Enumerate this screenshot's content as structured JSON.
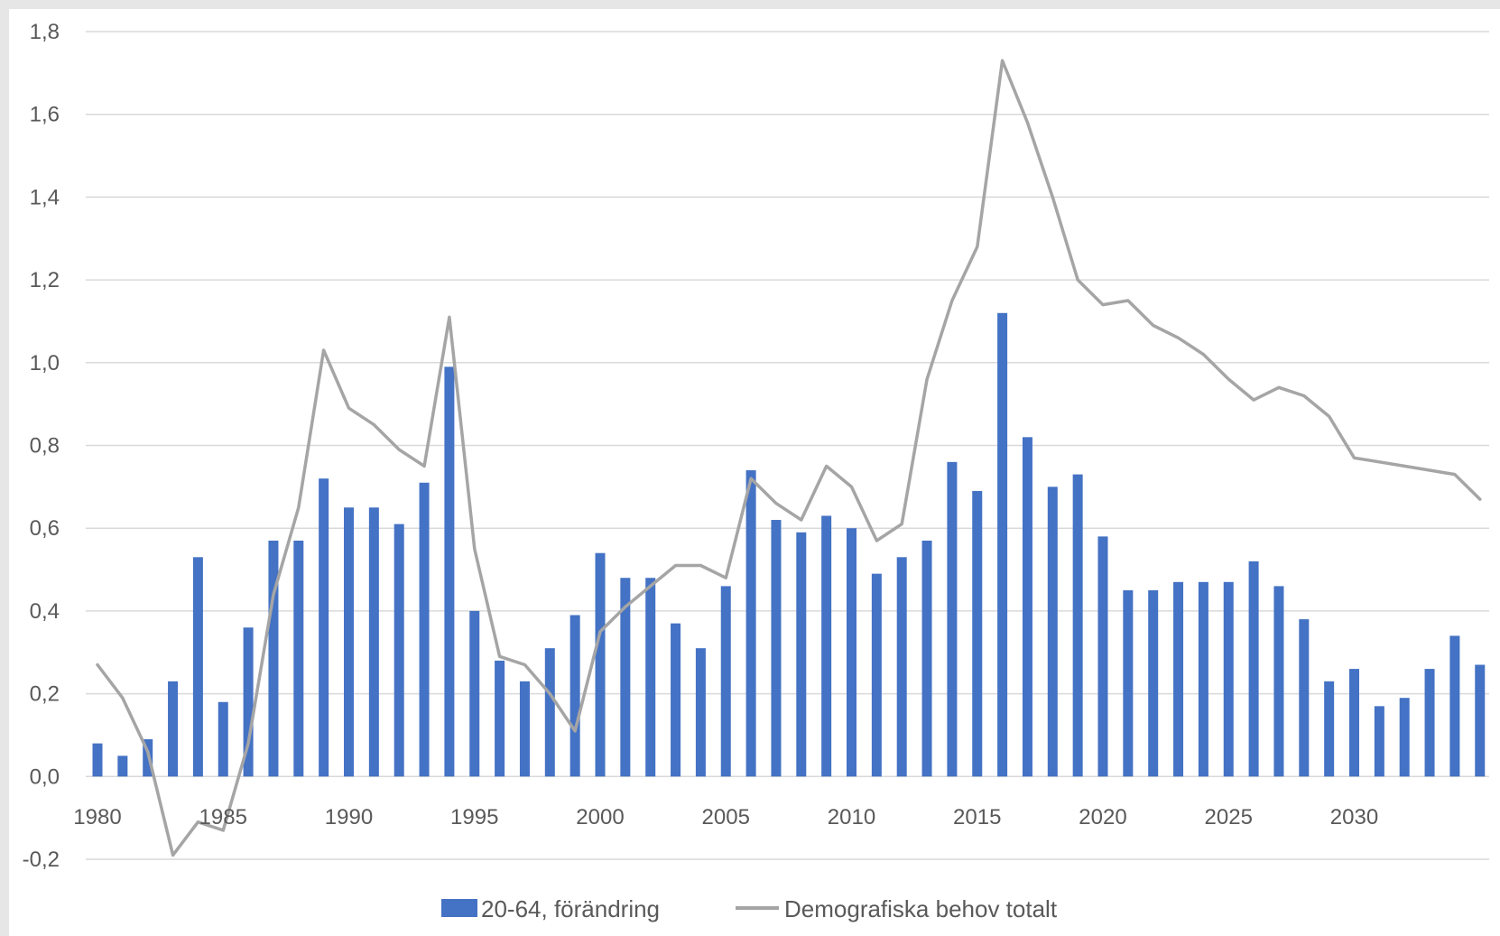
{
  "chart_data": {
    "type": "bar",
    "title": "",
    "xlabel": "",
    "ylabel": "",
    "ylim": [
      -0.2,
      1.8
    ],
    "grid": true,
    "legend_position": "bottom",
    "y_ticks": [
      "-0,2",
      "0,0",
      "0,2",
      "0,4",
      "0,6",
      "0,8",
      "1,0",
      "1,2",
      "1,4",
      "1,6",
      "1,8"
    ],
    "x_tick_labels": [
      "1980",
      "1985",
      "1990",
      "1995",
      "2000",
      "2005",
      "2010",
      "2015",
      "2020",
      "2025",
      "2030"
    ],
    "categories": [
      1980,
      1981,
      1982,
      1983,
      1984,
      1985,
      1986,
      1987,
      1988,
      1989,
      1990,
      1991,
      1992,
      1993,
      1994,
      1995,
      1996,
      1997,
      1998,
      1999,
      2000,
      2001,
      2002,
      2003,
      2004,
      2005,
      2006,
      2007,
      2008,
      2009,
      2010,
      2011,
      2012,
      2013,
      2014,
      2015,
      2016,
      2017,
      2018,
      2019,
      2020,
      2021,
      2022,
      2023,
      2024,
      2025,
      2026,
      2027,
      2028,
      2029,
      2030,
      2031,
      2032,
      2033,
      2034,
      2035
    ],
    "series": [
      {
        "name": "20-64, förändring",
        "kind": "bar",
        "color": "#4472c4",
        "values": [
          0.08,
          0.05,
          0.09,
          0.23,
          0.53,
          0.18,
          0.36,
          0.57,
          0.57,
          0.72,
          0.65,
          0.65,
          0.61,
          0.71,
          0.99,
          0.4,
          0.28,
          0.23,
          0.31,
          0.39,
          0.54,
          0.48,
          0.48,
          0.37,
          0.31,
          0.46,
          0.74,
          0.62,
          0.59,
          0.63,
          0.6,
          0.49,
          0.53,
          0.57,
          0.76,
          0.69,
          1.12,
          0.82,
          0.7,
          0.73,
          0.58,
          0.45,
          0.45,
          0.47,
          0.47,
          0.47,
          0.52,
          0.46,
          0.38,
          0.23,
          0.26,
          0.17,
          0.19,
          0.26,
          0.34,
          0.27
        ]
      },
      {
        "name": "Demografiska behov totalt",
        "kind": "line",
        "color": "#a5a5a5",
        "values": [
          0.27,
          0.19,
          0.06,
          -0.19,
          -0.11,
          -0.13,
          0.08,
          0.44,
          0.65,
          1.03,
          0.89,
          0.85,
          0.79,
          0.75,
          1.11,
          0.55,
          0.29,
          0.27,
          0.2,
          0.11,
          0.35,
          0.41,
          0.46,
          0.51,
          0.51,
          0.48,
          0.72,
          0.66,
          0.62,
          0.75,
          0.7,
          0.57,
          0.61,
          0.96,
          1.15,
          1.28,
          1.73,
          1.58,
          1.4,
          1.2,
          1.14,
          1.15,
          1.09,
          1.06,
          1.02,
          0.96,
          0.91,
          0.94,
          0.92,
          0.87,
          0.77,
          0.76,
          0.75,
          0.74,
          0.73,
          0.67
        ]
      }
    ]
  }
}
